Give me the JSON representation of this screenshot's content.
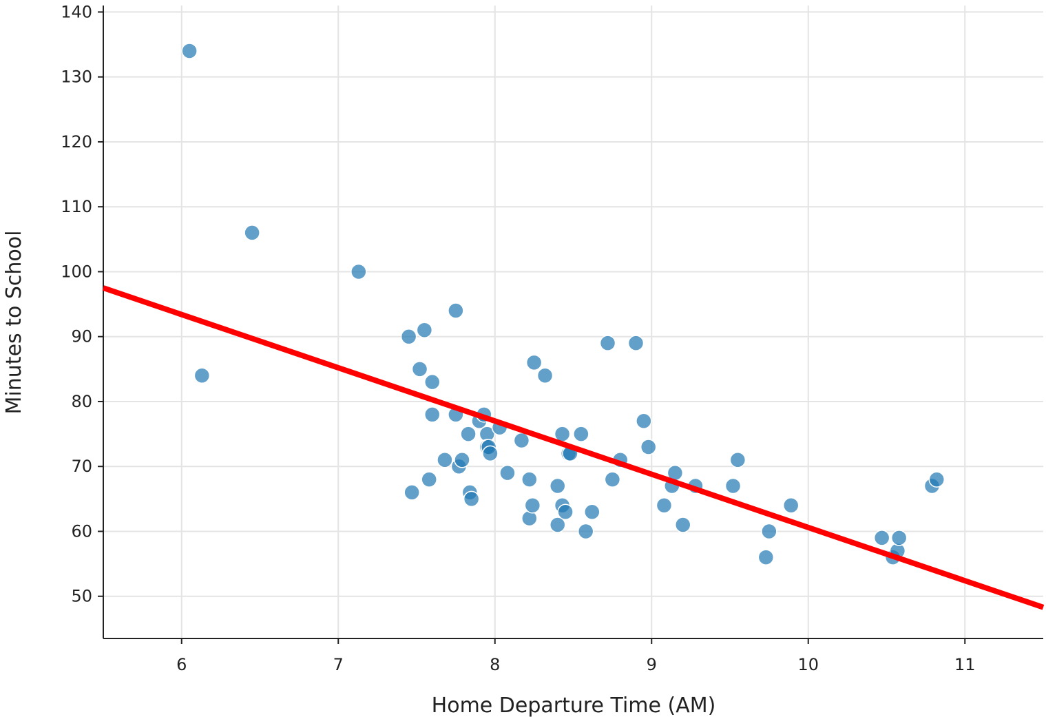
{
  "chart_data": {
    "type": "scatter",
    "title": "",
    "xlabel": "Home Departure Time (AM)",
    "ylabel": "Minutes to School",
    "xlim": [
      5.5,
      11.5
    ],
    "ylim": [
      43.5,
      141
    ],
    "x_ticks": [
      6,
      7,
      8,
      9,
      10,
      11
    ],
    "y_ticks": [
      50,
      60,
      70,
      80,
      90,
      100,
      110,
      120,
      130,
      140
    ],
    "grid": true,
    "legend": "none",
    "colors": {
      "points": "#1f77b4",
      "point_opacity": 0.7,
      "fit_line": "#ff0000",
      "grid": "#e4e4e4",
      "axis": "#222222"
    },
    "series": [
      {
        "type": "scatter",
        "x": [
          6.05,
          6.13,
          6.45,
          7.13,
          7.45,
          7.47,
          7.52,
          7.55,
          7.58,
          7.6,
          7.6,
          7.68,
          7.75,
          7.75,
          7.77,
          7.79,
          7.83,
          7.84,
          7.85,
          7.9,
          7.93,
          7.95,
          7.95,
          7.96,
          7.97,
          8.03,
          8.08,
          8.17,
          8.22,
          8.22,
          8.24,
          8.25,
          8.32,
          8.4,
          8.4,
          8.43,
          8.43,
          8.45,
          8.47,
          8.48,
          8.55,
          8.58,
          8.62,
          8.72,
          8.75,
          8.8,
          8.9,
          8.95,
          8.98,
          9.08,
          9.13,
          9.15,
          9.2,
          9.28,
          9.52,
          9.55,
          9.73,
          9.75,
          9.89,
          10.47,
          10.54,
          10.57,
          10.58,
          10.79,
          10.82
        ],
        "y": [
          134,
          84,
          106,
          100,
          90,
          66,
          85,
          91,
          68,
          83,
          78,
          71,
          94,
          78,
          70,
          71,
          75,
          66,
          65,
          77,
          78,
          75,
          73,
          73,
          72,
          76,
          69,
          74,
          68,
          62,
          64,
          86,
          84,
          67,
          61,
          75,
          64,
          63,
          72,
          72,
          75,
          60,
          63,
          89,
          68,
          71,
          89,
          77,
          73,
          64,
          67,
          69,
          61,
          67,
          67,
          71,
          56,
          60,
          64,
          59,
          56,
          57,
          59,
          67,
          68
        ]
      },
      {
        "type": "line",
        "x": [
          5.5,
          11.5
        ],
        "y": [
          97.5,
          48.3
        ]
      }
    ]
  }
}
